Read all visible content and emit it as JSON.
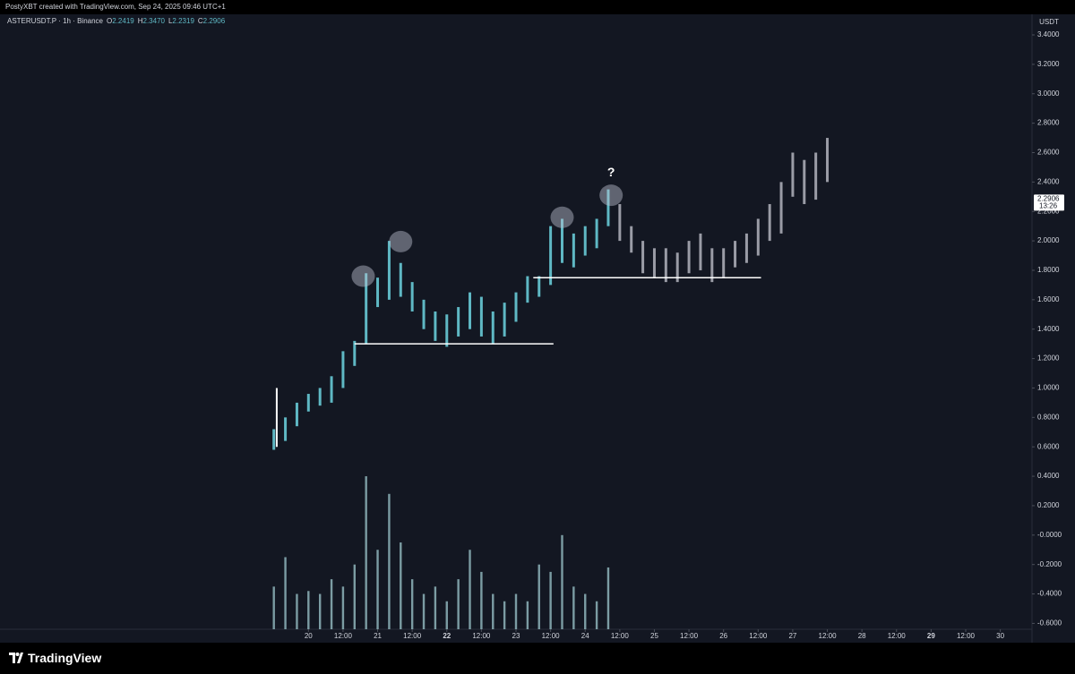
{
  "header": "PostyXBT created with TradingView.com, Sep 24, 2025 09:46 UTC+1",
  "footer": {
    "logo": "TradingView"
  },
  "chart_data": {
    "type": "range-bar",
    "symbol": "ASTERUSDT.P · 1h · Binance",
    "ohlc": [
      {
        "key": "O",
        "value": 2.2419,
        "label": "2.2419"
      },
      {
        "key": "H",
        "value": 2.347,
        "label": "2.3470"
      },
      {
        "key": "L",
        "value": 2.2319,
        "label": "2.2319"
      },
      {
        "key": "C",
        "value": 2.2906,
        "label": "2.2906"
      }
    ],
    "currency": "USDT",
    "grid": false,
    "xlim": [
      -107,
      251
    ],
    "ylim": [
      -0.64,
      3.54
    ],
    "xticks": [
      {
        "value": 0,
        "label": "20"
      },
      {
        "value": 12,
        "label": "12:00"
      },
      {
        "value": 24,
        "label": "21"
      },
      {
        "value": 36,
        "label": "12:00"
      },
      {
        "value": 48,
        "label": "22",
        "bold": true
      },
      {
        "value": 60,
        "label": "12:00"
      },
      {
        "value": 72,
        "label": "23"
      },
      {
        "value": 84,
        "label": "12:00"
      },
      {
        "value": 96,
        "label": "24"
      },
      {
        "value": 108,
        "label": "12:00"
      },
      {
        "value": 120,
        "label": "25"
      },
      {
        "value": 132,
        "label": "12:00"
      },
      {
        "value": 144,
        "label": "26"
      },
      {
        "value": 156,
        "label": "12:00"
      },
      {
        "value": 168,
        "label": "27"
      },
      {
        "value": 180,
        "label": "12:00"
      },
      {
        "value": 192,
        "label": "28"
      },
      {
        "value": 204,
        "label": "12:00"
      },
      {
        "value": 216,
        "label": "29",
        "bold": true
      },
      {
        "value": 228,
        "label": "12:00"
      },
      {
        "value": 240,
        "label": "30"
      }
    ],
    "yticks": [
      {
        "value": 3.4,
        "label": "3.4000"
      },
      {
        "value": 3.2,
        "label": "3.2000"
      },
      {
        "value": 3.0,
        "label": "3.0000"
      },
      {
        "value": 2.8,
        "label": "2.8000"
      },
      {
        "value": 2.6,
        "label": "2.6000"
      },
      {
        "value": 2.4,
        "label": "2.4000"
      },
      {
        "value": 2.2,
        "label": "2.2000"
      },
      {
        "value": 2.0,
        "label": "2.0000"
      },
      {
        "value": 1.8,
        "label": "1.8000"
      },
      {
        "value": 1.6,
        "label": "1.6000"
      },
      {
        "value": 1.4,
        "label": "1.4000"
      },
      {
        "value": 1.2,
        "label": "1.2000"
      },
      {
        "value": 1.0,
        "label": "1.0000"
      },
      {
        "value": 0.8,
        "label": "0.8000"
      },
      {
        "value": 0.6,
        "label": "0.6000"
      },
      {
        "value": 0.4,
        "label": "0.4000"
      },
      {
        "value": 0.2,
        "label": "0.2000"
      },
      {
        "value": 0,
        "label": "-0.0000"
      },
      {
        "value": -0.2,
        "label": "-0.2000"
      },
      {
        "value": -0.4,
        "label": "-0.4000"
      },
      {
        "value": -0.6,
        "label": "-0.6000"
      }
    ],
    "series": [
      {
        "color": "#5fb8c4",
        "x": [
          -12,
          -8,
          -4,
          0,
          4,
          8,
          12,
          16,
          20,
          24,
          28,
          32,
          36,
          40,
          44,
          48,
          52,
          56,
          60,
          64,
          68,
          72,
          76,
          80,
          84,
          88,
          92,
          96,
          100,
          104
        ],
        "low": [
          0.58,
          0.64,
          0.74,
          0.84,
          0.88,
          0.9,
          1.0,
          1.15,
          1.3,
          1.55,
          1.6,
          1.62,
          1.52,
          1.4,
          1.32,
          1.28,
          1.35,
          1.4,
          1.35,
          1.3,
          1.35,
          1.45,
          1.58,
          1.62,
          1.7,
          1.85,
          1.82,
          1.9,
          1.95,
          2.1
        ],
        "high": [
          0.72,
          0.8,
          0.9,
          0.96,
          1.0,
          1.08,
          1.25,
          1.32,
          1.78,
          1.75,
          2.0,
          1.85,
          1.72,
          1.6,
          1.52,
          1.5,
          1.55,
          1.65,
          1.62,
          1.52,
          1.58,
          1.65,
          1.76,
          1.76,
          2.1,
          2.15,
          2.05,
          2.1,
          2.15,
          2.35
        ]
      },
      {
        "color": "#9a9ca6",
        "x": [
          108,
          112,
          116,
          120,
          124,
          128,
          132,
          136,
          140,
          144,
          148,
          152,
          156,
          160,
          164,
          168,
          172,
          176,
          180
        ],
        "low": [
          2.0,
          1.92,
          1.78,
          1.75,
          1.72,
          1.72,
          1.78,
          1.8,
          1.72,
          1.75,
          1.82,
          1.85,
          1.9,
          2.0,
          2.05,
          2.3,
          2.25,
          2.28,
          2.4
        ],
        "high": [
          2.25,
          2.1,
          2.0,
          1.95,
          1.95,
          1.92,
          2.0,
          2.05,
          1.95,
          1.95,
          2.0,
          2.05,
          2.15,
          2.25,
          2.4,
          2.6,
          2.55,
          2.6,
          2.7
        ]
      }
    ],
    "volume": {
      "color": "#9fc9cf",
      "x": [
        -12,
        -8,
        -4,
        0,
        4,
        8,
        12,
        16,
        20,
        24,
        28,
        32,
        36,
        40,
        44,
        48,
        52,
        56,
        60,
        64,
        68,
        72,
        76,
        80,
        84,
        88,
        92,
        96,
        100,
        104
      ],
      "values": [
        -0.35,
        -0.15,
        -0.4,
        -0.38,
        -0.4,
        -0.3,
        -0.35,
        -0.2,
        0.4,
        -0.1,
        0.28,
        -0.05,
        -0.3,
        -0.4,
        -0.35,
        -0.45,
        -0.3,
        -0.1,
        -0.25,
        -0.4,
        -0.45,
        -0.4,
        -0.45,
        -0.2,
        -0.25,
        0.0,
        -0.35,
        -0.4,
        -0.45,
        -0.22
      ]
    },
    "levels": [
      {
        "value": 1.3,
        "x": [
          16,
          85
        ]
      },
      {
        "value": 1.75,
        "x": [
          78,
          157
        ]
      }
    ],
    "vertical_line": {
      "x": -11,
      "y": [
        0.6,
        1.0
      ]
    },
    "highlights": [
      {
        "x": 19,
        "y": 1.76
      },
      {
        "x": 32,
        "y": 1.995
      },
      {
        "x": 88,
        "y": 2.16
      },
      {
        "x": 105,
        "y": 2.31
      }
    ],
    "annotations": [
      {
        "text": "?",
        "x": 105,
        "y": 2.46
      }
    ],
    "last_price": {
      "value": 2.2906,
      "label": "2.2906",
      "countdown": "13:26"
    }
  }
}
